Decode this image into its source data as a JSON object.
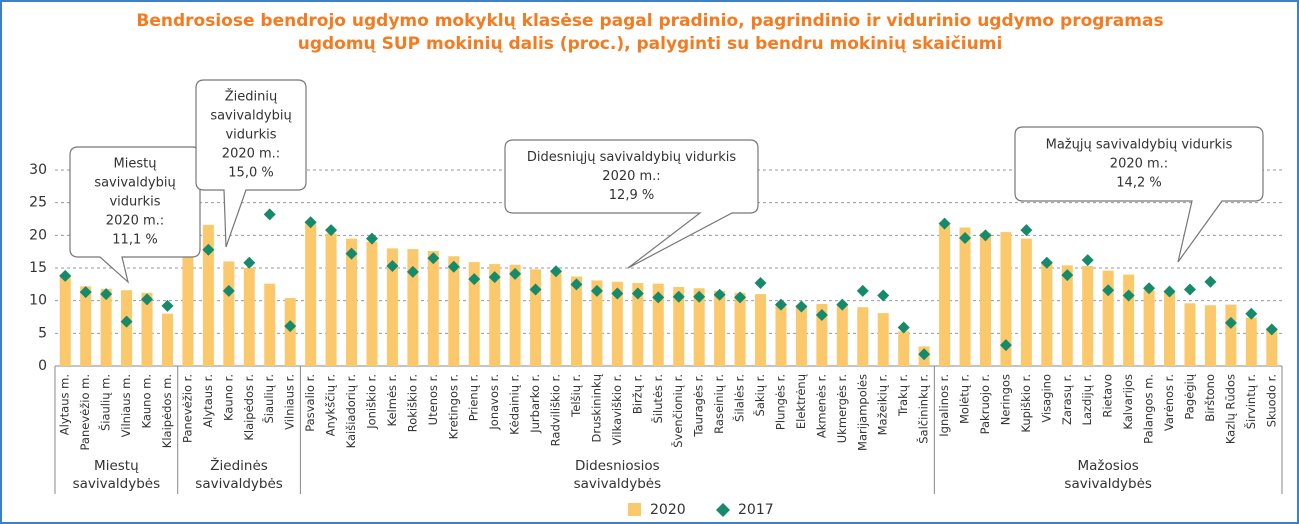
{
  "chart_data": {
    "type": "bar",
    "title": [
      "Bendrosiose bendrojo ugdymo mokyklų klasėse pagal pradinio, pagrindinio ir vidurinio ugdymo programas",
      "ugdomų SUP mokinių dalis (proc.), palyginti su bendru mokinių skaičiumi"
    ],
    "categories": [
      "Alytaus m.",
      "Panevėžio m.",
      "Šiaulių m.",
      "Vilniaus m.",
      "Kauno m.",
      "Klaipėdos m.",
      "Panevėžio r.",
      "Alytaus r.",
      "Kauno r.",
      "Klaipėdos r.",
      "Šiaulių r.",
      "Vilniaus r.",
      "Pasvalio r.",
      "Anykščių r.",
      "Kaišiadorių r.",
      "Joniškio r.",
      "Kelmės r.",
      "Rokiškio r.",
      "Utenos r.",
      "Kretingos r.",
      "Prienų r.",
      "Jonavos r.",
      "Kėdainių r.",
      "Jurbarko r.",
      "Radviliškio r.",
      "Telšių r.",
      "Druskininkų",
      "Vilkaviškio r.",
      "Biržų r.",
      "Šilutės r.",
      "Švenčionių r.",
      "Tauragės r.",
      "Raseinių r.",
      "Šilalės r.",
      "Šakių r.",
      "Plungės r.",
      "Elektrėnų",
      "Akmenės r.",
      "Ukmergės r.",
      "Marijampolės",
      "Mažeikių r.",
      "Trakų r.",
      "Šalčininkų r.",
      "Ignalinos r.",
      "Molėtų r.",
      "Pakruojo r.",
      "Neringos",
      "Kupiškio r.",
      "Visagino",
      "Zarasų r.",
      "Lazdijų r.",
      "Rietavo",
      "Kalvarijos",
      "Palangos m.",
      "Varėnos r.",
      "Pagėgių",
      "Birštono",
      "Kazlų Rūdos",
      "Širvintų r.",
      "Skuodo r."
    ],
    "series": [
      {
        "name": "2020",
        "color": "#fbc96c",
        "marker": "bar",
        "values": [
          14,
          12.2,
          11.8,
          11.6,
          11.2,
          8,
          23.8,
          21.6,
          16,
          15,
          12.6,
          10.4,
          22.2,
          20.3,
          19.5,
          19,
          18,
          17.9,
          17.6,
          16.8,
          15.9,
          15.6,
          15.5,
          14.8,
          14.6,
          13.7,
          13.1,
          12.9,
          12.7,
          12.6,
          12.1,
          11.9,
          11.5,
          11.2,
          11,
          9.3,
          9.3,
          9.5,
          9.4,
          9,
          8.1,
          5.3,
          3,
          21.6,
          21.2,
          20.4,
          20.5,
          19.5,
          16,
          15.4,
          15.3,
          14.6,
          14,
          11.6,
          11.4,
          9.6,
          9.3,
          9.4,
          7.4,
          5.8
        ]
      },
      {
        "name": "2017",
        "color": "#178a6c",
        "marker": "diamond",
        "values": [
          13.8,
          11.3,
          11,
          6.8,
          10.2,
          9.2,
          24.9,
          17.8,
          11.5,
          15.8,
          23.2,
          6.1,
          22,
          20.8,
          17.2,
          19.5,
          15.3,
          14.4,
          16.5,
          15.2,
          13.3,
          13.6,
          14.1,
          11.7,
          14.5,
          12.5,
          11.5,
          11.1,
          11.1,
          10.5,
          10.6,
          10.6,
          10.9,
          10.5,
          12.7,
          9.4,
          9.1,
          7.8,
          9.4,
          11.5,
          10.8,
          5.9,
          1.8,
          21.8,
          19.6,
          20,
          3.2,
          20.8,
          15.8,
          13.9,
          16.2,
          11.6,
          10.8,
          11.9,
          11.4,
          11.7,
          12.9,
          6.6,
          8,
          5.6
        ]
      }
    ],
    "groups": [
      {
        "lines": [
          "Miestų",
          "savivaldybės"
        ],
        "start": 0,
        "end": 5
      },
      {
        "lines": [
          "Žiedinės",
          "savivaldybės"
        ],
        "start": 6,
        "end": 11
      },
      {
        "lines": [
          "Didesniosios",
          "savivaldybės"
        ],
        "start": 12,
        "end": 42
      },
      {
        "lines": [
          "Mažosios",
          "savivaldybės"
        ],
        "start": 43,
        "end": 59
      }
    ],
    "annotations": [
      {
        "lines": [
          "Miestų",
          "savivaldybių",
          "vidurkis",
          "2020 m.:",
          "11,1 %"
        ]
      },
      {
        "lines": [
          "Žiedinių",
          "savivaldybių",
          "vidurkis",
          "2020 m.:",
          "15,0 %"
        ]
      },
      {
        "lines": [
          "Didesniųjų  savivaldybių vidurkis",
          "2020 m.:",
          "12,9 %"
        ]
      },
      {
        "lines": [
          "Mažųjų savivaldybių vidurkis",
          "2020 m.:",
          "14,2 %"
        ]
      }
    ],
    "ylim": [
      0,
      30
    ],
    "yticks": [
      0,
      5,
      10,
      15,
      20,
      25,
      30
    ],
    "grid": true,
    "legend": "bottom"
  }
}
